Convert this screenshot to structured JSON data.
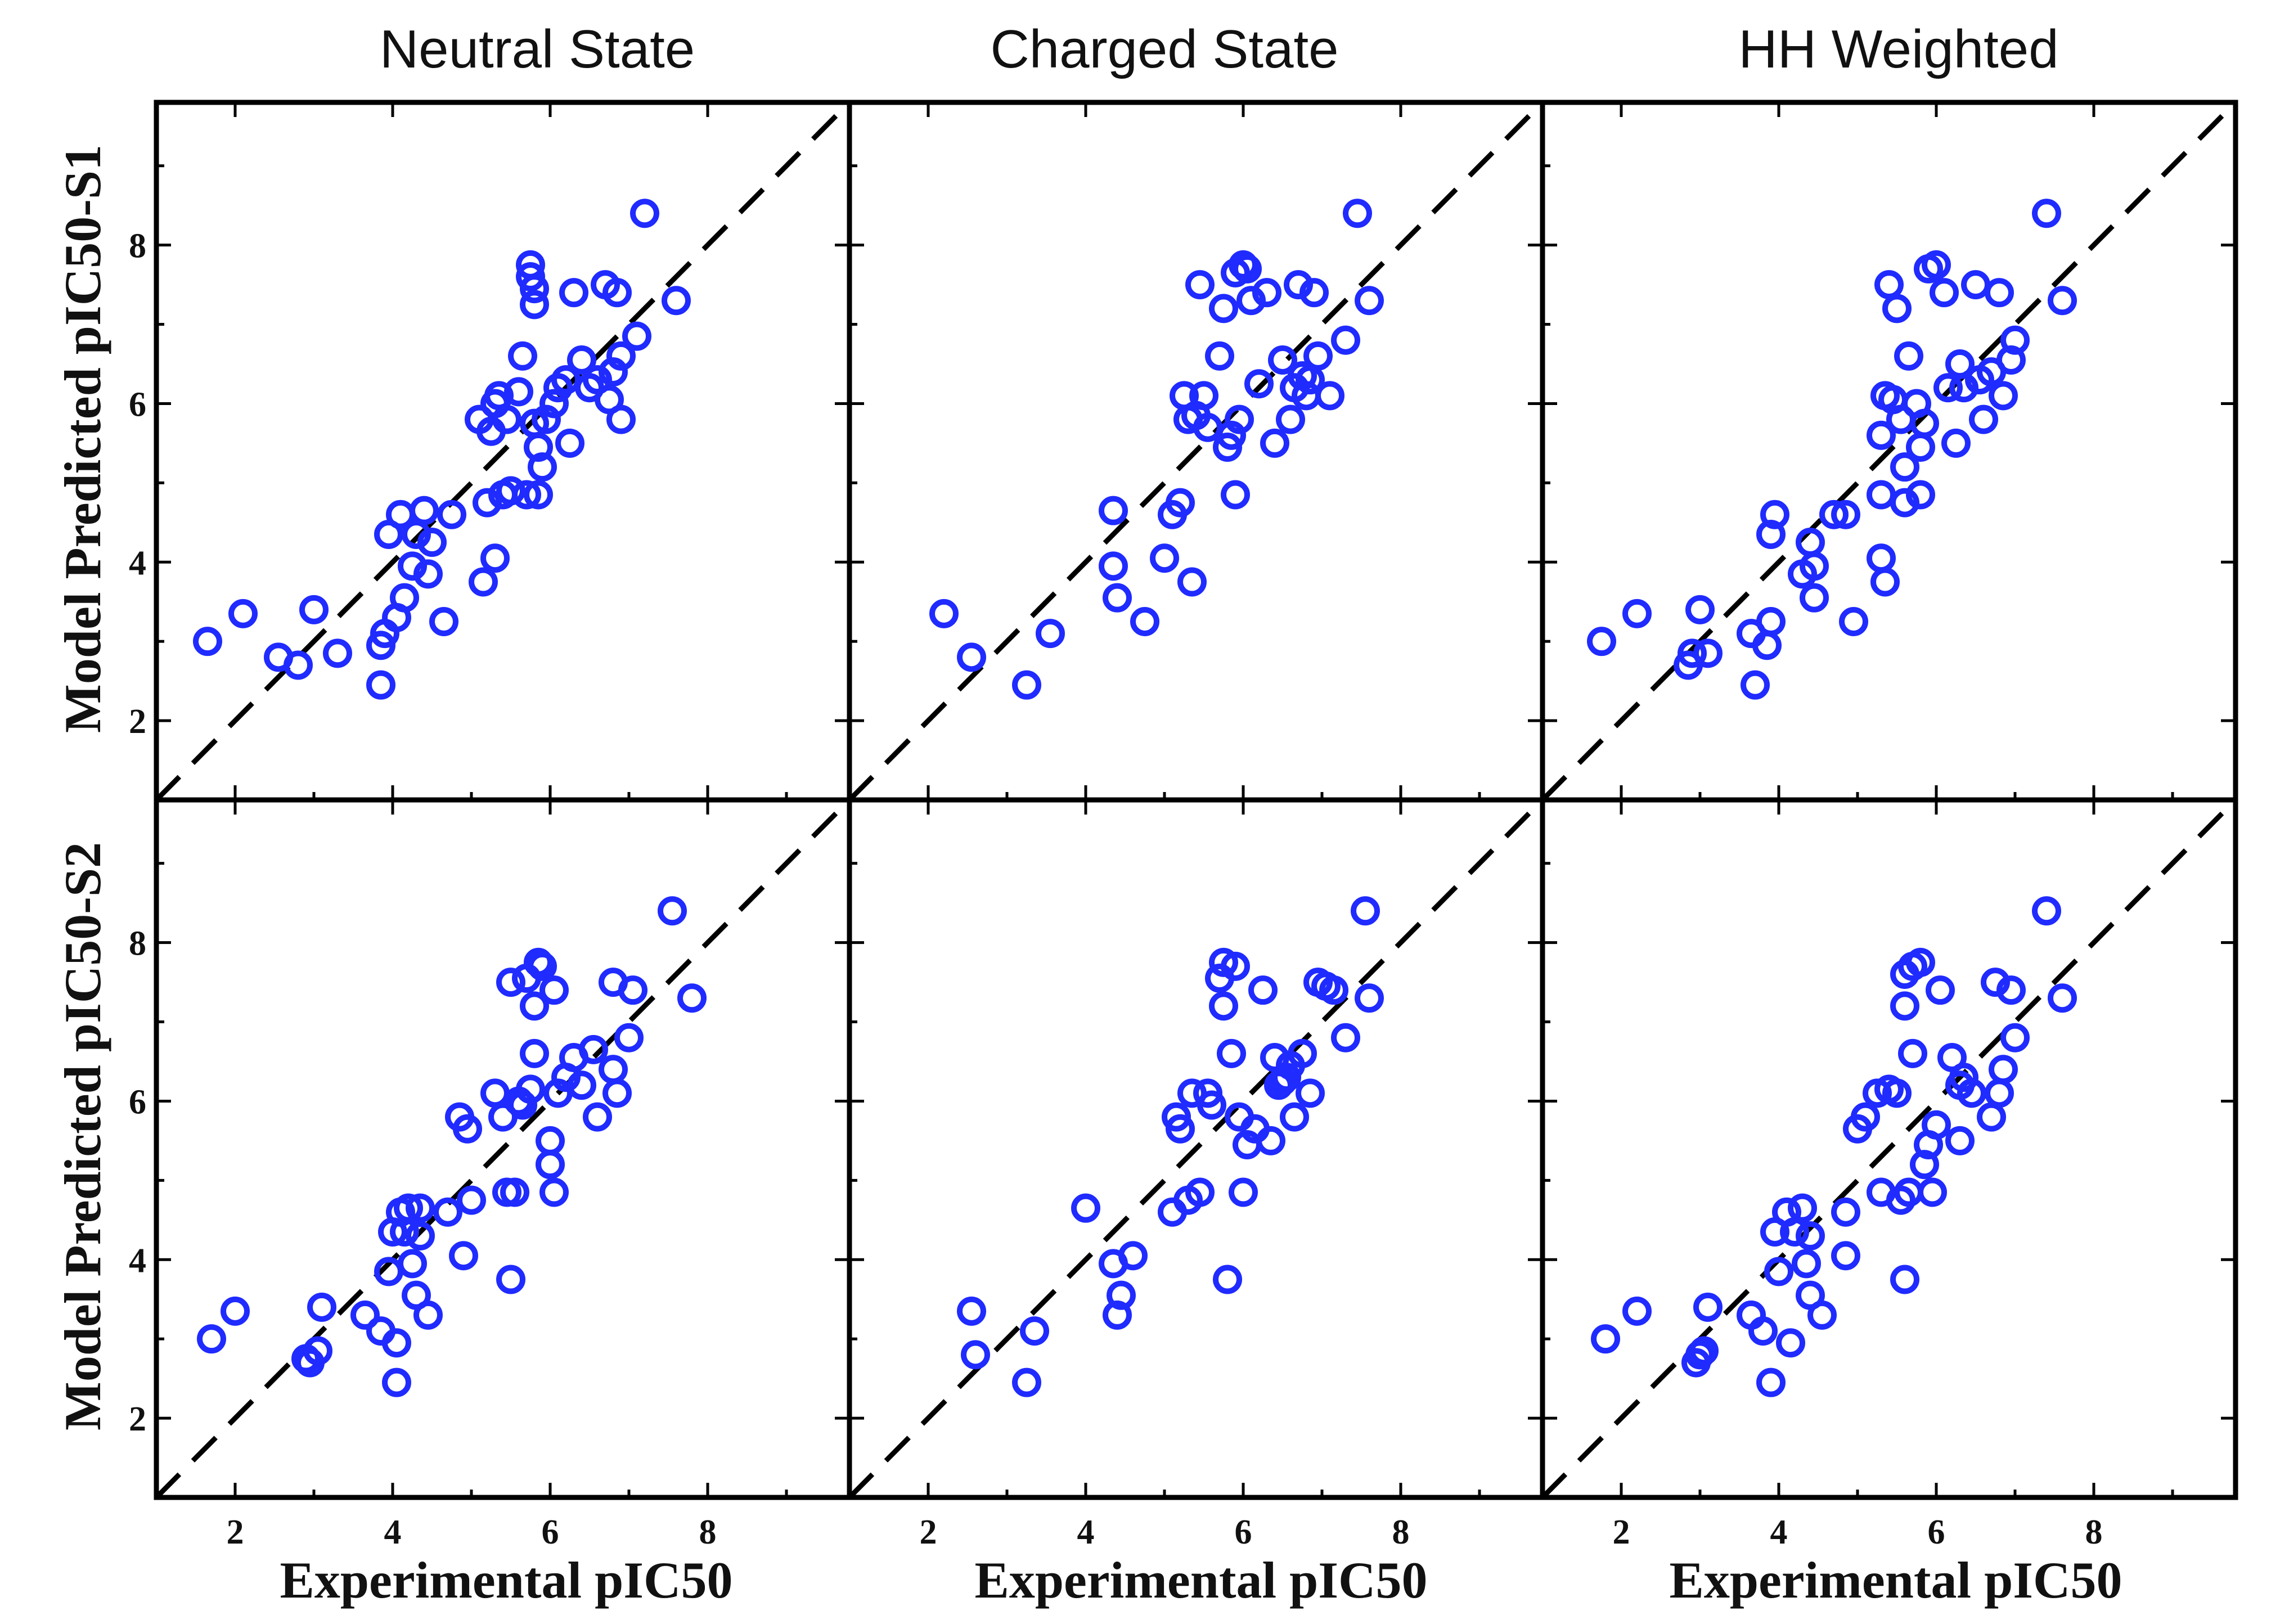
{
  "colors": {
    "marker": "#1f2bff",
    "line": "#000000"
  },
  "figure": {
    "column_titles": [
      "Neutral State",
      "Charged State",
      "HH Weighted"
    ],
    "row_ylabels": [
      "Model Predicted pIC50-S1",
      "Model Predicted pIC50-S2"
    ],
    "xlabel": "Experimental pIC50"
  },
  "chart_data": [
    {
      "type": "scatter",
      "title": "Neutral State",
      "ylabel": "Model Predicted pIC50-S1",
      "xlabel": "",
      "xlim": [
        1,
        9.8
      ],
      "ylim": [
        1,
        9.8
      ],
      "xticks": [
        2,
        4,
        6,
        8
      ],
      "yticks": [
        2,
        4,
        6,
        8
      ],
      "reference_line": "y = x",
      "points": [
        [
          1.65,
          3.0
        ],
        [
          2.1,
          3.35
        ],
        [
          2.55,
          2.8
        ],
        [
          2.8,
          2.7
        ],
        [
          3.0,
          3.4
        ],
        [
          3.3,
          2.85
        ],
        [
          3.85,
          2.45
        ],
        [
          3.85,
          2.95
        ],
        [
          3.9,
          3.1
        ],
        [
          3.95,
          4.35
        ],
        [
          4.05,
          3.3
        ],
        [
          4.1,
          4.6
        ],
        [
          4.15,
          3.55
        ],
        [
          4.25,
          3.95
        ],
        [
          4.3,
          4.35
        ],
        [
          4.4,
          4.65
        ],
        [
          4.45,
          3.85
        ],
        [
          4.5,
          4.25
        ],
        [
          4.65,
          3.25
        ],
        [
          4.75,
          4.6
        ],
        [
          5.1,
          5.8
        ],
        [
          5.15,
          3.75
        ],
        [
          5.2,
          4.75
        ],
        [
          5.25,
          5.65
        ],
        [
          5.3,
          6.0
        ],
        [
          5.3,
          4.05
        ],
        [
          5.35,
          6.1
        ],
        [
          5.4,
          4.85
        ],
        [
          5.45,
          5.8
        ],
        [
          5.5,
          4.9
        ],
        [
          5.6,
          6.15
        ],
        [
          5.65,
          6.6
        ],
        [
          5.7,
          4.85
        ],
        [
          5.75,
          7.75
        ],
        [
          5.75,
          7.6
        ],
        [
          5.8,
          7.45
        ],
        [
          5.8,
          7.25
        ],
        [
          5.8,
          5.75
        ],
        [
          5.85,
          5.45
        ],
        [
          5.85,
          4.85
        ],
        [
          5.9,
          5.2
        ],
        [
          5.95,
          5.8
        ],
        [
          6.05,
          6.0
        ],
        [
          6.1,
          6.2
        ],
        [
          6.2,
          6.3
        ],
        [
          6.25,
          5.5
        ],
        [
          6.3,
          7.4
        ],
        [
          6.4,
          6.55
        ],
        [
          6.5,
          6.2
        ],
        [
          6.6,
          6.3
        ],
        [
          6.7,
          7.5
        ],
        [
          6.75,
          6.05
        ],
        [
          6.8,
          6.4
        ],
        [
          6.85,
          7.4
        ],
        [
          6.9,
          5.8
        ],
        [
          6.9,
          6.6
        ],
        [
          7.1,
          6.85
        ],
        [
          7.2,
          8.4
        ],
        [
          7.6,
          7.3
        ]
      ]
    },
    {
      "type": "scatter",
      "title": "Charged State",
      "ylabel": "",
      "xlabel": "",
      "xlim": [
        1,
        9.8
      ],
      "ylim": [
        1,
        9.8
      ],
      "xticks": [
        2,
        4,
        6,
        8
      ],
      "yticks": [
        2,
        4,
        6,
        8
      ],
      "reference_line": "y = x",
      "points": [
        [
          2.2,
          3.35
        ],
        [
          2.55,
          2.8
        ],
        [
          3.25,
          2.45
        ],
        [
          3.55,
          3.1
        ],
        [
          4.35,
          4.65
        ],
        [
          4.35,
          3.95
        ],
        [
          4.4,
          3.55
        ],
        [
          4.75,
          3.25
        ],
        [
          5.0,
          4.05
        ],
        [
          5.1,
          4.6
        ],
        [
          5.2,
          4.75
        ],
        [
          5.25,
          6.1
        ],
        [
          5.3,
          5.8
        ],
        [
          5.35,
          3.75
        ],
        [
          5.4,
          5.85
        ],
        [
          5.45,
          7.5
        ],
        [
          5.5,
          6.1
        ],
        [
          5.55,
          5.7
        ],
        [
          5.7,
          6.6
        ],
        [
          5.75,
          7.2
        ],
        [
          5.8,
          5.45
        ],
        [
          5.85,
          5.6
        ],
        [
          5.9,
          4.85
        ],
        [
          5.9,
          7.65
        ],
        [
          5.95,
          5.8
        ],
        [
          6.0,
          7.75
        ],
        [
          6.05,
          7.7
        ],
        [
          6.1,
          7.3
        ],
        [
          6.2,
          6.25
        ],
        [
          6.3,
          7.4
        ],
        [
          6.4,
          5.5
        ],
        [
          6.5,
          6.55
        ],
        [
          6.6,
          5.8
        ],
        [
          6.65,
          6.2
        ],
        [
          6.7,
          7.5
        ],
        [
          6.75,
          6.35
        ],
        [
          6.8,
          6.1
        ],
        [
          6.85,
          6.3
        ],
        [
          6.9,
          7.4
        ],
        [
          6.95,
          6.6
        ],
        [
          7.1,
          6.1
        ],
        [
          7.3,
          6.8
        ],
        [
          7.45,
          8.4
        ],
        [
          7.6,
          7.3
        ]
      ]
    },
    {
      "type": "scatter",
      "title": "HH Weighted",
      "ylabel": "",
      "xlabel": "",
      "xlim": [
        1,
        9.8
      ],
      "ylim": [
        1,
        9.8
      ],
      "xticks": [
        2,
        4,
        6,
        8
      ],
      "yticks": [
        2,
        4,
        6,
        8
      ],
      "reference_line": "y = x",
      "points": [
        [
          1.75,
          3.0
        ],
        [
          2.2,
          3.35
        ],
        [
          2.85,
          2.7
        ],
        [
          2.9,
          2.85
        ],
        [
          3.0,
          3.4
        ],
        [
          3.1,
          2.85
        ],
        [
          3.65,
          3.1
        ],
        [
          3.7,
          2.45
        ],
        [
          3.85,
          2.95
        ],
        [
          3.9,
          3.25
        ],
        [
          3.9,
          4.35
        ],
        [
          3.95,
          4.6
        ],
        [
          4.3,
          3.85
        ],
        [
          4.4,
          4.25
        ],
        [
          4.45,
          3.55
        ],
        [
          4.45,
          3.95
        ],
        [
          4.7,
          4.6
        ],
        [
          4.85,
          4.6
        ],
        [
          4.95,
          3.25
        ],
        [
          5.3,
          4.85
        ],
        [
          5.3,
          4.05
        ],
        [
          5.35,
          3.75
        ],
        [
          5.3,
          5.6
        ],
        [
          5.35,
          6.1
        ],
        [
          5.4,
          7.5
        ],
        [
          5.45,
          6.05
        ],
        [
          5.5,
          7.2
        ],
        [
          5.55,
          5.8
        ],
        [
          5.6,
          4.75
        ],
        [
          5.6,
          5.2
        ],
        [
          5.65,
          6.6
        ],
        [
          5.75,
          6.0
        ],
        [
          5.8,
          4.85
        ],
        [
          5.8,
          5.45
        ],
        [
          5.85,
          5.75
        ],
        [
          5.9,
          7.7
        ],
        [
          6.0,
          7.75
        ],
        [
          6.1,
          7.4
        ],
        [
          6.15,
          6.2
        ],
        [
          6.25,
          5.5
        ],
        [
          6.3,
          6.5
        ],
        [
          6.35,
          6.2
        ],
        [
          6.5,
          7.5
        ],
        [
          6.55,
          6.3
        ],
        [
          6.6,
          5.8
        ],
        [
          6.7,
          6.4
        ],
        [
          6.8,
          7.4
        ],
        [
          6.85,
          6.1
        ],
        [
          6.95,
          6.55
        ],
        [
          7.0,
          6.8
        ],
        [
          7.4,
          8.4
        ],
        [
          7.6,
          7.3
        ]
      ]
    },
    {
      "type": "scatter",
      "title": "",
      "ylabel": "Model Predicted pIC50-S2",
      "xlabel": "Experimental pIC50",
      "xlim": [
        1,
        9.8
      ],
      "ylim": [
        1,
        9.8
      ],
      "xticks": [
        2,
        4,
        6,
        8
      ],
      "yticks": [
        2,
        4,
        6,
        8
      ],
      "reference_line": "y = x",
      "points": [
        [
          1.7,
          3.0
        ],
        [
          2.0,
          3.35
        ],
        [
          2.9,
          2.75
        ],
        [
          2.95,
          2.7
        ],
        [
          3.05,
          2.85
        ],
        [
          3.1,
          3.4
        ],
        [
          3.65,
          3.3
        ],
        [
          3.85,
          3.1
        ],
        [
          3.95,
          3.85
        ],
        [
          4.0,
          4.35
        ],
        [
          4.05,
          2.95
        ],
        [
          4.05,
          2.45
        ],
        [
          4.1,
          4.6
        ],
        [
          4.15,
          4.35
        ],
        [
          4.2,
          4.65
        ],
        [
          4.25,
          3.95
        ],
        [
          4.3,
          3.55
        ],
        [
          4.35,
          4.65
        ],
        [
          4.35,
          4.3
        ],
        [
          4.45,
          3.3
        ],
        [
          4.7,
          4.6
        ],
        [
          4.85,
          5.8
        ],
        [
          4.9,
          4.05
        ],
        [
          4.95,
          5.65
        ],
        [
          5.0,
          4.75
        ],
        [
          5.3,
          6.1
        ],
        [
          5.4,
          5.8
        ],
        [
          5.45,
          4.85
        ],
        [
          5.5,
          7.5
        ],
        [
          5.55,
          4.85
        ],
        [
          5.5,
          3.75
        ],
        [
          5.6,
          6.0
        ],
        [
          5.65,
          5.95
        ],
        [
          5.7,
          7.55
        ],
        [
          5.75,
          6.15
        ],
        [
          5.8,
          7.2
        ],
        [
          5.8,
          6.6
        ],
        [
          5.85,
          7.75
        ],
        [
          5.9,
          7.7
        ],
        [
          6.0,
          5.5
        ],
        [
          6.0,
          5.2
        ],
        [
          6.05,
          4.85
        ],
        [
          6.05,
          7.4
        ],
        [
          6.1,
          6.1
        ],
        [
          6.2,
          6.3
        ],
        [
          6.3,
          6.55
        ],
        [
          6.4,
          6.2
        ],
        [
          6.55,
          6.65
        ],
        [
          6.6,
          5.8
        ],
        [
          6.8,
          6.4
        ],
        [
          6.8,
          7.5
        ],
        [
          6.85,
          6.1
        ],
        [
          7.0,
          6.8
        ],
        [
          7.05,
          7.4
        ],
        [
          7.55,
          8.4
        ],
        [
          7.8,
          7.3
        ]
      ]
    },
    {
      "type": "scatter",
      "title": "",
      "ylabel": "",
      "xlabel": "Experimental pIC50",
      "xlim": [
        1,
        9.8
      ],
      "ylim": [
        1,
        9.8
      ],
      "xticks": [
        2,
        4,
        6,
        8
      ],
      "yticks": [
        2,
        4,
        6,
        8
      ],
      "reference_line": "y = x",
      "points": [
        [
          2.55,
          3.35
        ],
        [
          2.6,
          2.8
        ],
        [
          3.25,
          2.45
        ],
        [
          3.35,
          3.1
        ],
        [
          4.0,
          4.65
        ],
        [
          4.35,
          3.95
        ],
        [
          4.4,
          3.3
        ],
        [
          4.45,
          3.55
        ],
        [
          4.6,
          4.05
        ],
        [
          5.1,
          4.6
        ],
        [
          5.15,
          5.8
        ],
        [
          5.2,
          5.65
        ],
        [
          5.3,
          4.75
        ],
        [
          5.35,
          6.1
        ],
        [
          5.45,
          4.85
        ],
        [
          5.55,
          6.1
        ],
        [
          5.6,
          5.95
        ],
        [
          5.7,
          7.55
        ],
        [
          5.75,
          7.75
        ],
        [
          5.75,
          7.2
        ],
        [
          5.8,
          3.75
        ],
        [
          5.85,
          6.6
        ],
        [
          5.9,
          7.7
        ],
        [
          5.95,
          5.8
        ],
        [
          6.0,
          4.85
        ],
        [
          6.05,
          5.45
        ],
        [
          6.15,
          5.65
        ],
        [
          6.25,
          7.4
        ],
        [
          6.35,
          5.5
        ],
        [
          6.4,
          6.55
        ],
        [
          6.45,
          6.2
        ],
        [
          6.5,
          6.25
        ],
        [
          6.55,
          6.3
        ],
        [
          6.6,
          6.45
        ],
        [
          6.65,
          5.8
        ],
        [
          6.75,
          6.6
        ],
        [
          6.85,
          6.1
        ],
        [
          6.95,
          7.5
        ],
        [
          7.05,
          7.45
        ],
        [
          7.15,
          7.4
        ],
        [
          7.3,
          6.8
        ],
        [
          7.55,
          8.4
        ],
        [
          7.6,
          7.3
        ]
      ]
    },
    {
      "type": "scatter",
      "title": "",
      "ylabel": "",
      "xlabel": "Experimental pIC50",
      "xlim": [
        1,
        9.8
      ],
      "ylim": [
        1,
        9.8
      ],
      "xticks": [
        2,
        4,
        6,
        8
      ],
      "yticks": [
        2,
        4,
        6,
        8
      ],
      "reference_line": "y = x",
      "points": [
        [
          1.8,
          3.0
        ],
        [
          2.2,
          3.35
        ],
        [
          2.95,
          2.7
        ],
        [
          3.0,
          2.8
        ],
        [
          3.05,
          2.85
        ],
        [
          3.1,
          3.4
        ],
        [
          3.65,
          3.3
        ],
        [
          3.8,
          3.1
        ],
        [
          3.9,
          2.45
        ],
        [
          3.95,
          4.35
        ],
        [
          4.0,
          3.85
        ],
        [
          4.1,
          4.6
        ],
        [
          4.15,
          2.95
        ],
        [
          4.2,
          4.35
        ],
        [
          4.3,
          4.65
        ],
        [
          4.35,
          3.95
        ],
        [
          4.4,
          4.3
        ],
        [
          4.4,
          3.55
        ],
        [
          4.55,
          3.3
        ],
        [
          4.85,
          4.6
        ],
        [
          4.85,
          4.05
        ],
        [
          5.0,
          5.65
        ],
        [
          5.1,
          5.8
        ],
        [
          5.25,
          6.1
        ],
        [
          5.3,
          4.85
        ],
        [
          5.4,
          6.15
        ],
        [
          5.5,
          6.1
        ],
        [
          5.55,
          4.75
        ],
        [
          5.6,
          7.6
        ],
        [
          5.6,
          7.2
        ],
        [
          5.6,
          3.75
        ],
        [
          5.65,
          4.85
        ],
        [
          5.7,
          7.7
        ],
        [
          5.7,
          6.6
        ],
        [
          5.8,
          7.75
        ],
        [
          5.85,
          5.2
        ],
        [
          5.9,
          5.45
        ],
        [
          5.95,
          4.85
        ],
        [
          6.0,
          5.7
        ],
        [
          6.05,
          7.4
        ],
        [
          6.2,
          6.55
        ],
        [
          6.3,
          5.5
        ],
        [
          6.3,
          6.2
        ],
        [
          6.35,
          6.3
        ],
        [
          6.45,
          6.1
        ],
        [
          6.7,
          5.8
        ],
        [
          6.75,
          7.5
        ],
        [
          6.8,
          6.1
        ],
        [
          6.85,
          6.4
        ],
        [
          6.95,
          7.4
        ],
        [
          7.0,
          6.8
        ],
        [
          7.4,
          8.4
        ],
        [
          7.6,
          7.3
        ]
      ]
    }
  ]
}
